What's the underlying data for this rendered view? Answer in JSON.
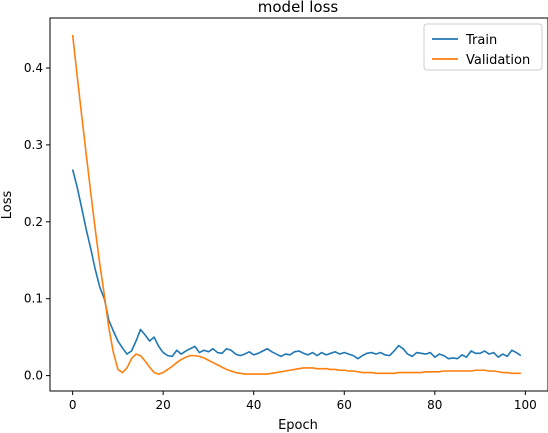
{
  "chart_data": {
    "type": "line",
    "title": "model loss",
    "xlabel": "Epoch",
    "ylabel": "Loss",
    "xlim": [
      -5,
      105
    ],
    "ylim": [
      -0.02,
      0.465
    ],
    "xticks": [
      0,
      20,
      40,
      60,
      80,
      100
    ],
    "yticks": [
      0.0,
      0.1,
      0.2,
      0.3,
      0.4
    ],
    "xtick_labels": [
      "0",
      "20",
      "40",
      "60",
      "80",
      "100"
    ],
    "ytick_labels": [
      "0.0",
      "0.1",
      "0.2",
      "0.3",
      "0.4"
    ],
    "grid": false,
    "legend_position": "top-right",
    "series": [
      {
        "name": "Train",
        "color": "#1f77b4",
        "x": [
          0,
          1,
          2,
          3,
          4,
          5,
          6,
          7,
          8,
          9,
          10,
          11,
          12,
          13,
          14,
          15,
          16,
          17,
          18,
          19,
          20,
          21,
          22,
          23,
          24,
          25,
          26,
          27,
          28,
          29,
          30,
          31,
          32,
          33,
          34,
          35,
          36,
          37,
          38,
          39,
          40,
          41,
          42,
          43,
          44,
          45,
          46,
          47,
          48,
          49,
          50,
          51,
          52,
          53,
          54,
          55,
          56,
          57,
          58,
          59,
          60,
          61,
          62,
          63,
          64,
          65,
          66,
          67,
          68,
          69,
          70,
          71,
          72,
          73,
          74,
          75,
          76,
          77,
          78,
          79,
          80,
          81,
          82,
          83,
          84,
          85,
          86,
          87,
          88,
          89,
          90,
          91,
          92,
          93,
          94,
          95,
          96,
          97,
          98,
          99
        ],
        "values": [
          0.268,
          0.245,
          0.218,
          0.19,
          0.165,
          0.138,
          0.115,
          0.1,
          0.072,
          0.058,
          0.045,
          0.036,
          0.028,
          0.032,
          0.045,
          0.06,
          0.053,
          0.045,
          0.05,
          0.038,
          0.03,
          0.026,
          0.025,
          0.033,
          0.028,
          0.032,
          0.035,
          0.038,
          0.03,
          0.033,
          0.031,
          0.035,
          0.03,
          0.029,
          0.035,
          0.033,
          0.028,
          0.026,
          0.028,
          0.031,
          0.027,
          0.029,
          0.032,
          0.035,
          0.031,
          0.028,
          0.025,
          0.028,
          0.027,
          0.031,
          0.032,
          0.029,
          0.027,
          0.03,
          0.026,
          0.03,
          0.027,
          0.029,
          0.031,
          0.028,
          0.03,
          0.028,
          0.026,
          0.022,
          0.026,
          0.029,
          0.03,
          0.028,
          0.03,
          0.027,
          0.026,
          0.032,
          0.039,
          0.035,
          0.028,
          0.025,
          0.03,
          0.029,
          0.028,
          0.03,
          0.024,
          0.028,
          0.026,
          0.022,
          0.023,
          0.022,
          0.027,
          0.024,
          0.032,
          0.029,
          0.029,
          0.032,
          0.028,
          0.03,
          0.024,
          0.028,
          0.025,
          0.033,
          0.03,
          0.026
        ]
      },
      {
        "name": "Validation",
        "color": "#ff7f0e",
        "x": [
          0,
          1,
          2,
          3,
          4,
          5,
          6,
          7,
          8,
          9,
          10,
          11,
          12,
          13,
          14,
          15,
          16,
          17,
          18,
          19,
          20,
          21,
          22,
          23,
          24,
          25,
          26,
          27,
          28,
          29,
          30,
          31,
          32,
          33,
          34,
          35,
          36,
          37,
          38,
          39,
          40,
          41,
          42,
          43,
          44,
          45,
          46,
          47,
          48,
          49,
          50,
          51,
          52,
          53,
          54,
          55,
          56,
          57,
          58,
          59,
          60,
          61,
          62,
          63,
          64,
          65,
          66,
          67,
          68,
          69,
          70,
          71,
          72,
          73,
          74,
          75,
          76,
          77,
          78,
          79,
          80,
          81,
          82,
          83,
          84,
          85,
          86,
          87,
          88,
          89,
          90,
          91,
          92,
          93,
          94,
          95,
          96,
          97,
          98,
          99
        ],
        "values": [
          0.443,
          0.39,
          0.338,
          0.288,
          0.238,
          0.19,
          0.145,
          0.105,
          0.062,
          0.03,
          0.008,
          0.004,
          0.01,
          0.022,
          0.028,
          0.026,
          0.019,
          0.011,
          0.004,
          0.002,
          0.004,
          0.008,
          0.012,
          0.017,
          0.021,
          0.024,
          0.026,
          0.026,
          0.025,
          0.023,
          0.02,
          0.017,
          0.014,
          0.011,
          0.008,
          0.006,
          0.004,
          0.003,
          0.002,
          0.002,
          0.002,
          0.002,
          0.002,
          0.002,
          0.003,
          0.004,
          0.005,
          0.006,
          0.007,
          0.008,
          0.009,
          0.01,
          0.01,
          0.01,
          0.009,
          0.009,
          0.009,
          0.008,
          0.008,
          0.007,
          0.007,
          0.006,
          0.006,
          0.005,
          0.004,
          0.004,
          0.004,
          0.003,
          0.003,
          0.003,
          0.003,
          0.003,
          0.004,
          0.004,
          0.004,
          0.004,
          0.004,
          0.004,
          0.005,
          0.005,
          0.005,
          0.005,
          0.006,
          0.006,
          0.006,
          0.006,
          0.006,
          0.006,
          0.006,
          0.007,
          0.007,
          0.007,
          0.006,
          0.006,
          0.005,
          0.004,
          0.004,
          0.003,
          0.003,
          0.003
        ]
      }
    ]
  }
}
